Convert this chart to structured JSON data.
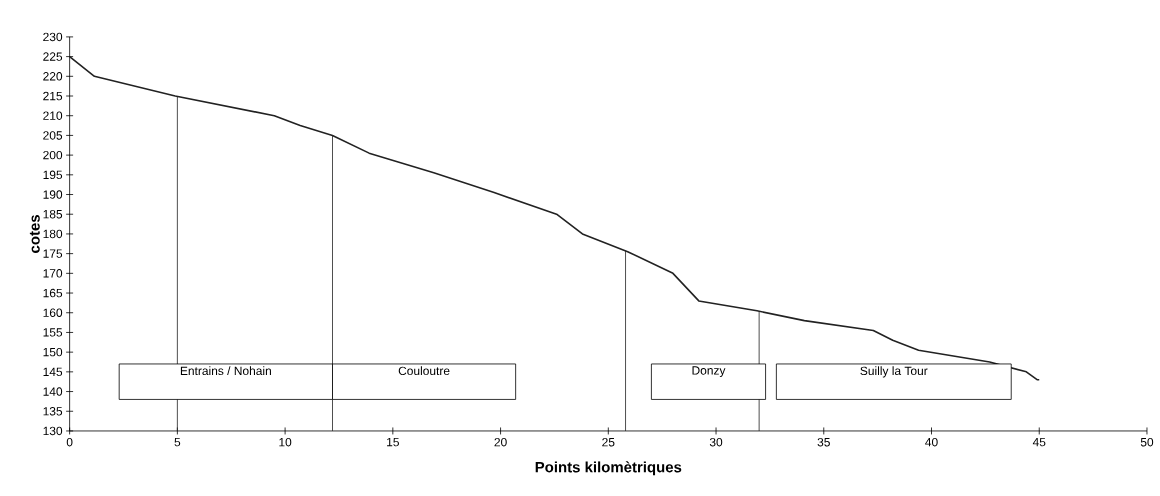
{
  "chart_data": {
    "type": "line",
    "xlabel": "Points kilomètriques",
    "ylabel": "cotes",
    "x": [
      0,
      1.15,
      4.9,
      9.5,
      10.7,
      12.2,
      13.9,
      16.9,
      19.7,
      22.6,
      23.8,
      25.9,
      28,
      29.2,
      31.9,
      34.1,
      37.3,
      38.2,
      39.4,
      42.7,
      44.4,
      44.9,
      45
    ],
    "values": [
      225,
      220,
      215,
      210,
      207.5,
      205,
      200.5,
      195.5,
      190.5,
      185,
      180,
      175.5,
      170,
      163,
      160.5,
      158,
      155.5,
      153,
      150.5,
      147.5,
      145,
      143,
      143
    ],
    "color": "#222222",
    "marker": "none",
    "line_style": "solid",
    "grid": false,
    "xlim": [
      0,
      50
    ],
    "xticks": [
      0,
      5,
      10,
      15,
      20,
      25,
      30,
      35,
      40,
      45,
      50
    ],
    "ylim": [
      130,
      230
    ],
    "yticks": [
      130,
      135,
      140,
      145,
      150,
      155,
      160,
      165,
      170,
      175,
      180,
      185,
      190,
      195,
      200,
      205,
      210,
      215,
      220,
      225,
      230
    ],
    "ref_lines": [
      {
        "axis": "x",
        "value": 5,
        "color": "#222222"
      },
      {
        "axis": "x",
        "value": 12.2,
        "color": "#222222"
      },
      {
        "axis": "x",
        "value": 25.8,
        "color": "#222222"
      },
      {
        "axis": "x",
        "value": 32,
        "color": "#222222"
      }
    ],
    "bands": [
      {
        "axis": "x",
        "from": 2.3,
        "to": 12.2,
        "label": "Entrains / Nohain",
        "color": "#ffffff"
      },
      {
        "axis": "x",
        "from": 12.2,
        "to": 20.7,
        "label": "Couloutre",
        "color": "#ffffff"
      },
      {
        "axis": "x",
        "from": 27,
        "to": 32.3,
        "label": "Donzy",
        "color": "#ffffff"
      },
      {
        "axis": "x",
        "from": 32.8,
        "to": 43.7,
        "label": "Suilly la Tour",
        "color": "#ffffff"
      }
    ]
  }
}
